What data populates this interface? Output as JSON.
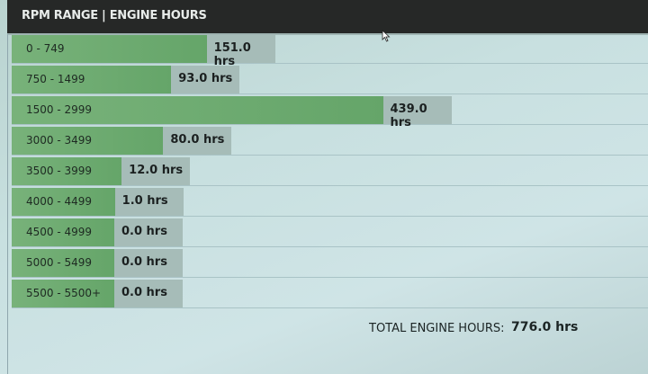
{
  "header": {
    "title": "RPM RANGE | ENGINE HOURS"
  },
  "chart_data": {
    "type": "bar",
    "orientation": "horizontal",
    "title": "RPM RANGE | ENGINE HOURS",
    "categories": [
      "0 - 749",
      "750 - 1499",
      "1500 - 2999",
      "3000 - 3499",
      "3500 - 3999",
      "4000 - 4499",
      "4500 - 4999",
      "5000 - 5499",
      "5500 - 5500+"
    ],
    "values": [
      151.0,
      93.0,
      439.0,
      80.0,
      12.0,
      1.0,
      0.0,
      0.0,
      0.0
    ],
    "value_labels": [
      "151.0 hrs",
      "93.0 hrs",
      "439.0 hrs",
      "80.0 hrs",
      "12.0 hrs",
      "1.0 hrs",
      "0.0 hrs",
      "0.0 hrs",
      "0.0 hrs"
    ],
    "unit": "hrs",
    "colors": {
      "bar": "#6aaa6d",
      "value_box": "#a6bcb8",
      "header": "#262827"
    }
  },
  "footer": {
    "total_label": "TOTAL ENGINE HOURS:",
    "total_value": "776.0 hrs"
  }
}
